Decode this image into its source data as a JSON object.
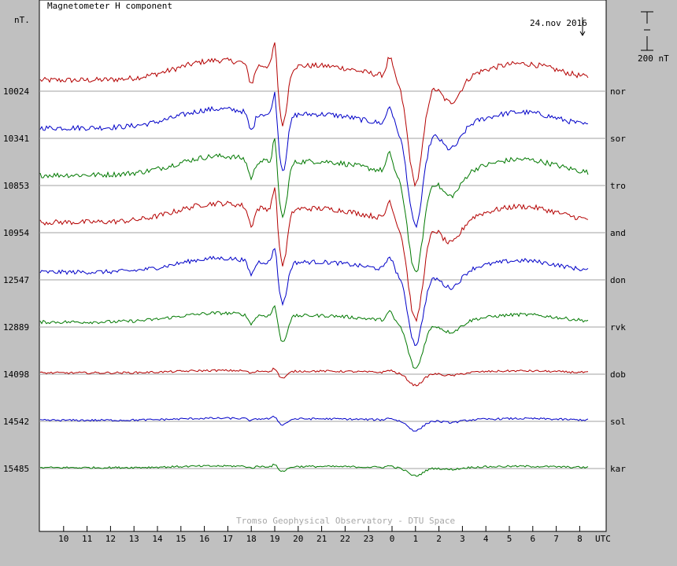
{
  "chart_data": {
    "type": "line",
    "title": "Magnetometer H component",
    "ylabel": "nT.",
    "date_label": "24.nov 2016",
    "scale_label": "200 nT",
    "x_unit": "UTC",
    "x_tick_labels": [
      "10",
      "11",
      "12",
      "13",
      "14",
      "15",
      "16",
      "17",
      "18",
      "19",
      "20",
      "21",
      "22",
      "23",
      "0",
      "1",
      "2",
      "3",
      "4",
      "5",
      "6",
      "7",
      "8"
    ],
    "footer": "Tromso Geophysical Observatory - DTU Space",
    "colors": {
      "red": "#b40000",
      "blue": "#0000c8",
      "green": "#007800",
      "grid": "#a0a0a0"
    },
    "series": [
      {
        "name": "nor",
        "baseline": "10024",
        "color": "red",
        "amp": 1.0
      },
      {
        "name": "sor",
        "baseline": "10341",
        "color": "blue",
        "amp": 0.95
      },
      {
        "name": "tro",
        "baseline": "10853",
        "color": "green",
        "amp": 0.95
      },
      {
        "name": "and",
        "baseline": "10954",
        "color": "red",
        "amp": 0.95
      },
      {
        "name": "don",
        "baseline": "12547",
        "color": "blue",
        "amp": 0.7
      },
      {
        "name": "rvk",
        "baseline": "12889",
        "color": "green",
        "amp": 0.45
      },
      {
        "name": "dob",
        "baseline": "14098",
        "color": "red",
        "amp": 0.12
      },
      {
        "name": "sol",
        "baseline": "14542",
        "color": "blue",
        "amp": 0.1
      },
      {
        "name": "kar",
        "baseline": "15485",
        "color": "green",
        "amp": 0.08
      }
    ]
  }
}
